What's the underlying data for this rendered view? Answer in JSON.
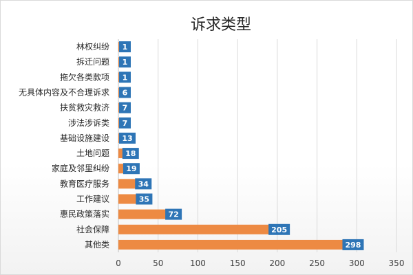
{
  "chart_data": {
    "type": "bar",
    "orientation": "horizontal",
    "title": "诉求类型",
    "categories": [
      "林权纠纷",
      "拆迁问题",
      "拖欠各类款项",
      "无具体内容及不合理诉求",
      "扶贫救灾救济",
      "涉法涉诉类",
      "基础设施建设",
      "土地问题",
      "家庭及邻里纠纷",
      "教育医疗服务",
      "工作建议",
      "惠民政策落实",
      "社会保障",
      "其他类"
    ],
    "values": [
      1,
      1,
      1,
      6,
      7,
      7,
      13,
      18,
      19,
      34,
      35,
      72,
      205,
      298
    ],
    "xlim": [
      0,
      350
    ],
    "xticks": [
      0,
      50,
      100,
      150,
      200,
      250,
      300,
      350
    ],
    "grid": true,
    "legend": "none",
    "bar_color": "#ed8a43",
    "label_bg_color": "#2e75b6",
    "label_color": "#ffffff"
  }
}
